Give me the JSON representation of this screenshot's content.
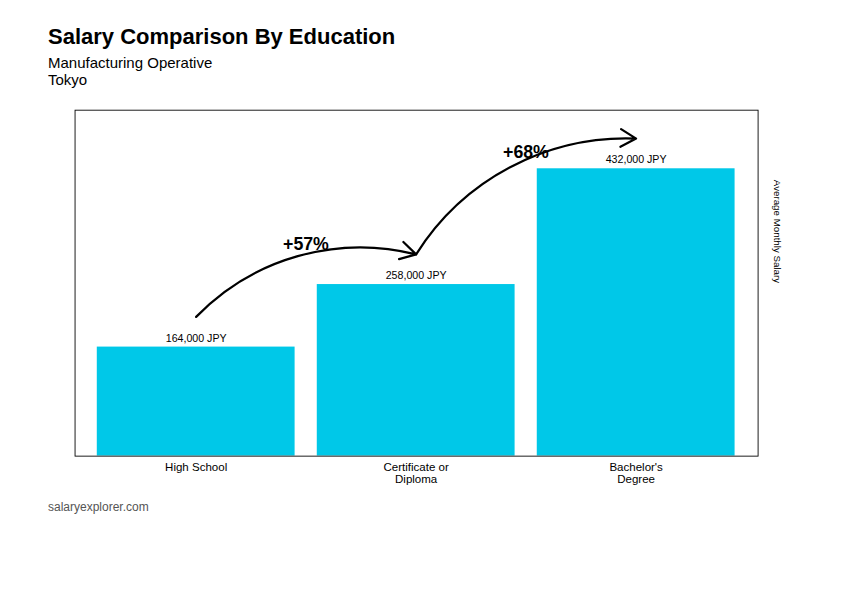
{
  "chart_data": {
    "type": "bar",
    "title": "Salary Comparison By Education",
    "subtitle": [
      "Manufacturing Operative",
      "Tokyo"
    ],
    "caption": "salaryexplorer.com",
    "ylabel": "Average Monthly Salary",
    "categories": [
      "High School",
      "Certificate or\nDiploma",
      "Bachelor's\nDegree"
    ],
    "values": [
      164000,
      258000,
      432000
    ],
    "value_labels": [
      "164,000 JPY",
      "258,000 JPY",
      "432,000 JPY"
    ],
    "data_labels": true,
    "color": "#00c8e8",
    "ylim": [
      0,
      520000
    ],
    "yticks": [],
    "tick_labels": "x",
    "grid": false,
    "annotations": [
      {
        "text": "+57%",
        "from": "High School",
        "to": "Certificate or\nDiploma"
      },
      {
        "text": "+68%",
        "from": "Certificate or\nDiploma",
        "to": "Bachelor's\nDegree"
      }
    ]
  }
}
